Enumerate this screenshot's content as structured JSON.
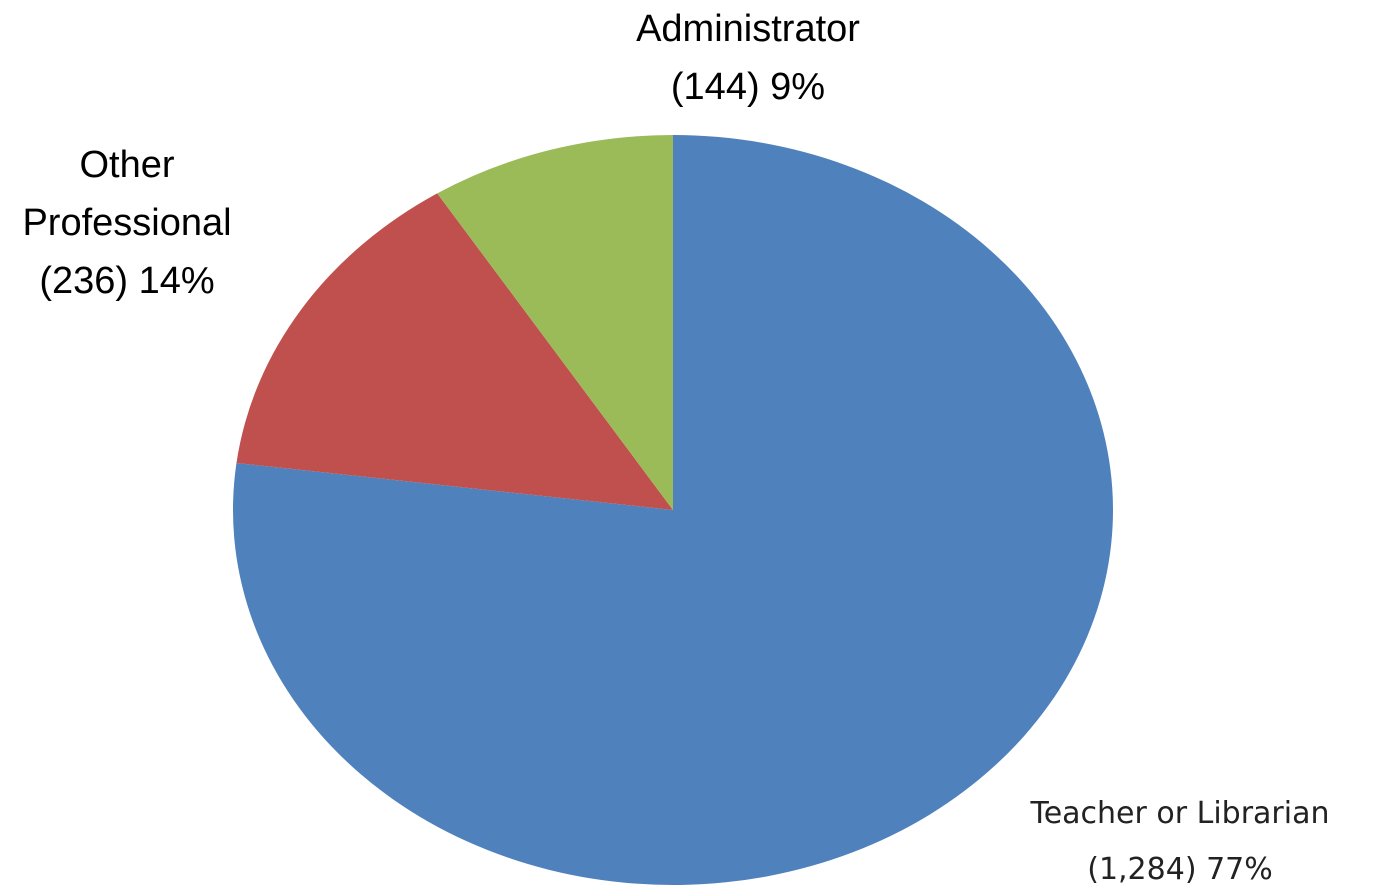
{
  "chart_data": {
    "type": "pie",
    "categories": [
      "Teacher or Librarian",
      "Other Professional",
      "Administrator"
    ],
    "values": [
      77,
      14,
      9
    ],
    "value_labels": [
      "77%",
      "14%",
      "9%"
    ],
    "counts": [
      1284,
      236,
      144
    ],
    "count_labels": [
      "(1,284)",
      "(236)",
      "(144)"
    ],
    "colors": [
      "#4f81bd",
      "#c0504d",
      "#9bbb59"
    ],
    "start": "top",
    "direction": "clockwise"
  }
}
